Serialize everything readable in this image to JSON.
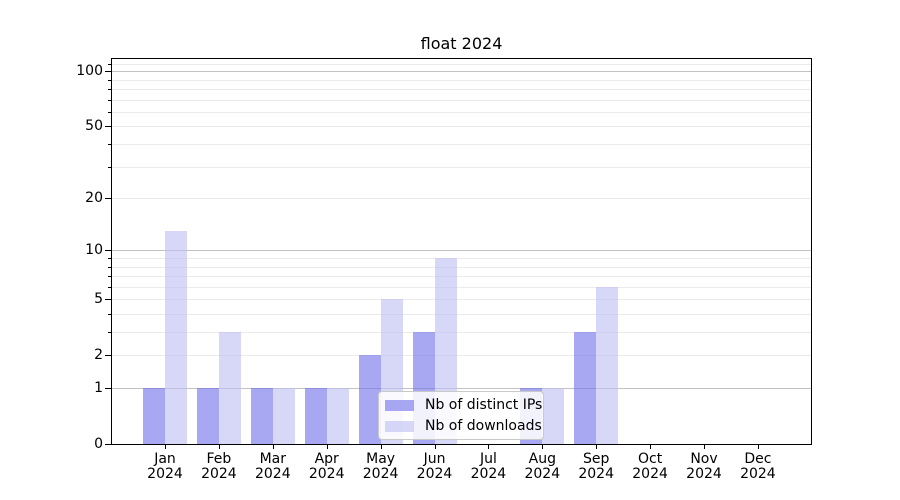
{
  "chart_data": {
    "type": "bar",
    "title": "float 2024",
    "categories": [
      "Jan",
      "Feb",
      "Mar",
      "Apr",
      "May",
      "Jun",
      "Jul",
      "Aug",
      "Sep",
      "Oct",
      "Nov",
      "Dec"
    ],
    "x_year_label": "2024",
    "series": [
      {
        "name": "Nb of distinct IPs",
        "color": "#6e6ee9",
        "alpha": 0.6,
        "composite_hex": "#a8a8f2",
        "values": [
          1,
          1,
          1,
          1,
          2,
          3,
          0,
          1,
          3,
          0,
          0,
          0
        ]
      },
      {
        "name": "Nb of downloads",
        "color": "#bcbcf2",
        "alpha": 0.6,
        "composite_hex": "#d7d7f7",
        "values": [
          13,
          3,
          1,
          1,
          5,
          9,
          0,
          1,
          6,
          0,
          0,
          0
        ]
      }
    ],
    "yscale": "log1p",
    "ylim": [
      0,
      116
    ],
    "yticks": [
      100,
      50,
      20,
      10,
      5,
      2,
      1,
      0
    ],
    "major_gridlines": [
      1,
      10,
      100
    ],
    "minor_gridlines": [
      2,
      3,
      4,
      5,
      6,
      7,
      8,
      9,
      20,
      30,
      40,
      50,
      60,
      70,
      80,
      90,
      110
    ],
    "grid": true,
    "legend_position": "lower center",
    "colors": {
      "major_grid": "#c2c2c2",
      "minor_grid": "#ebebeb",
      "axis": "#000000",
      "text": "#000000"
    }
  }
}
